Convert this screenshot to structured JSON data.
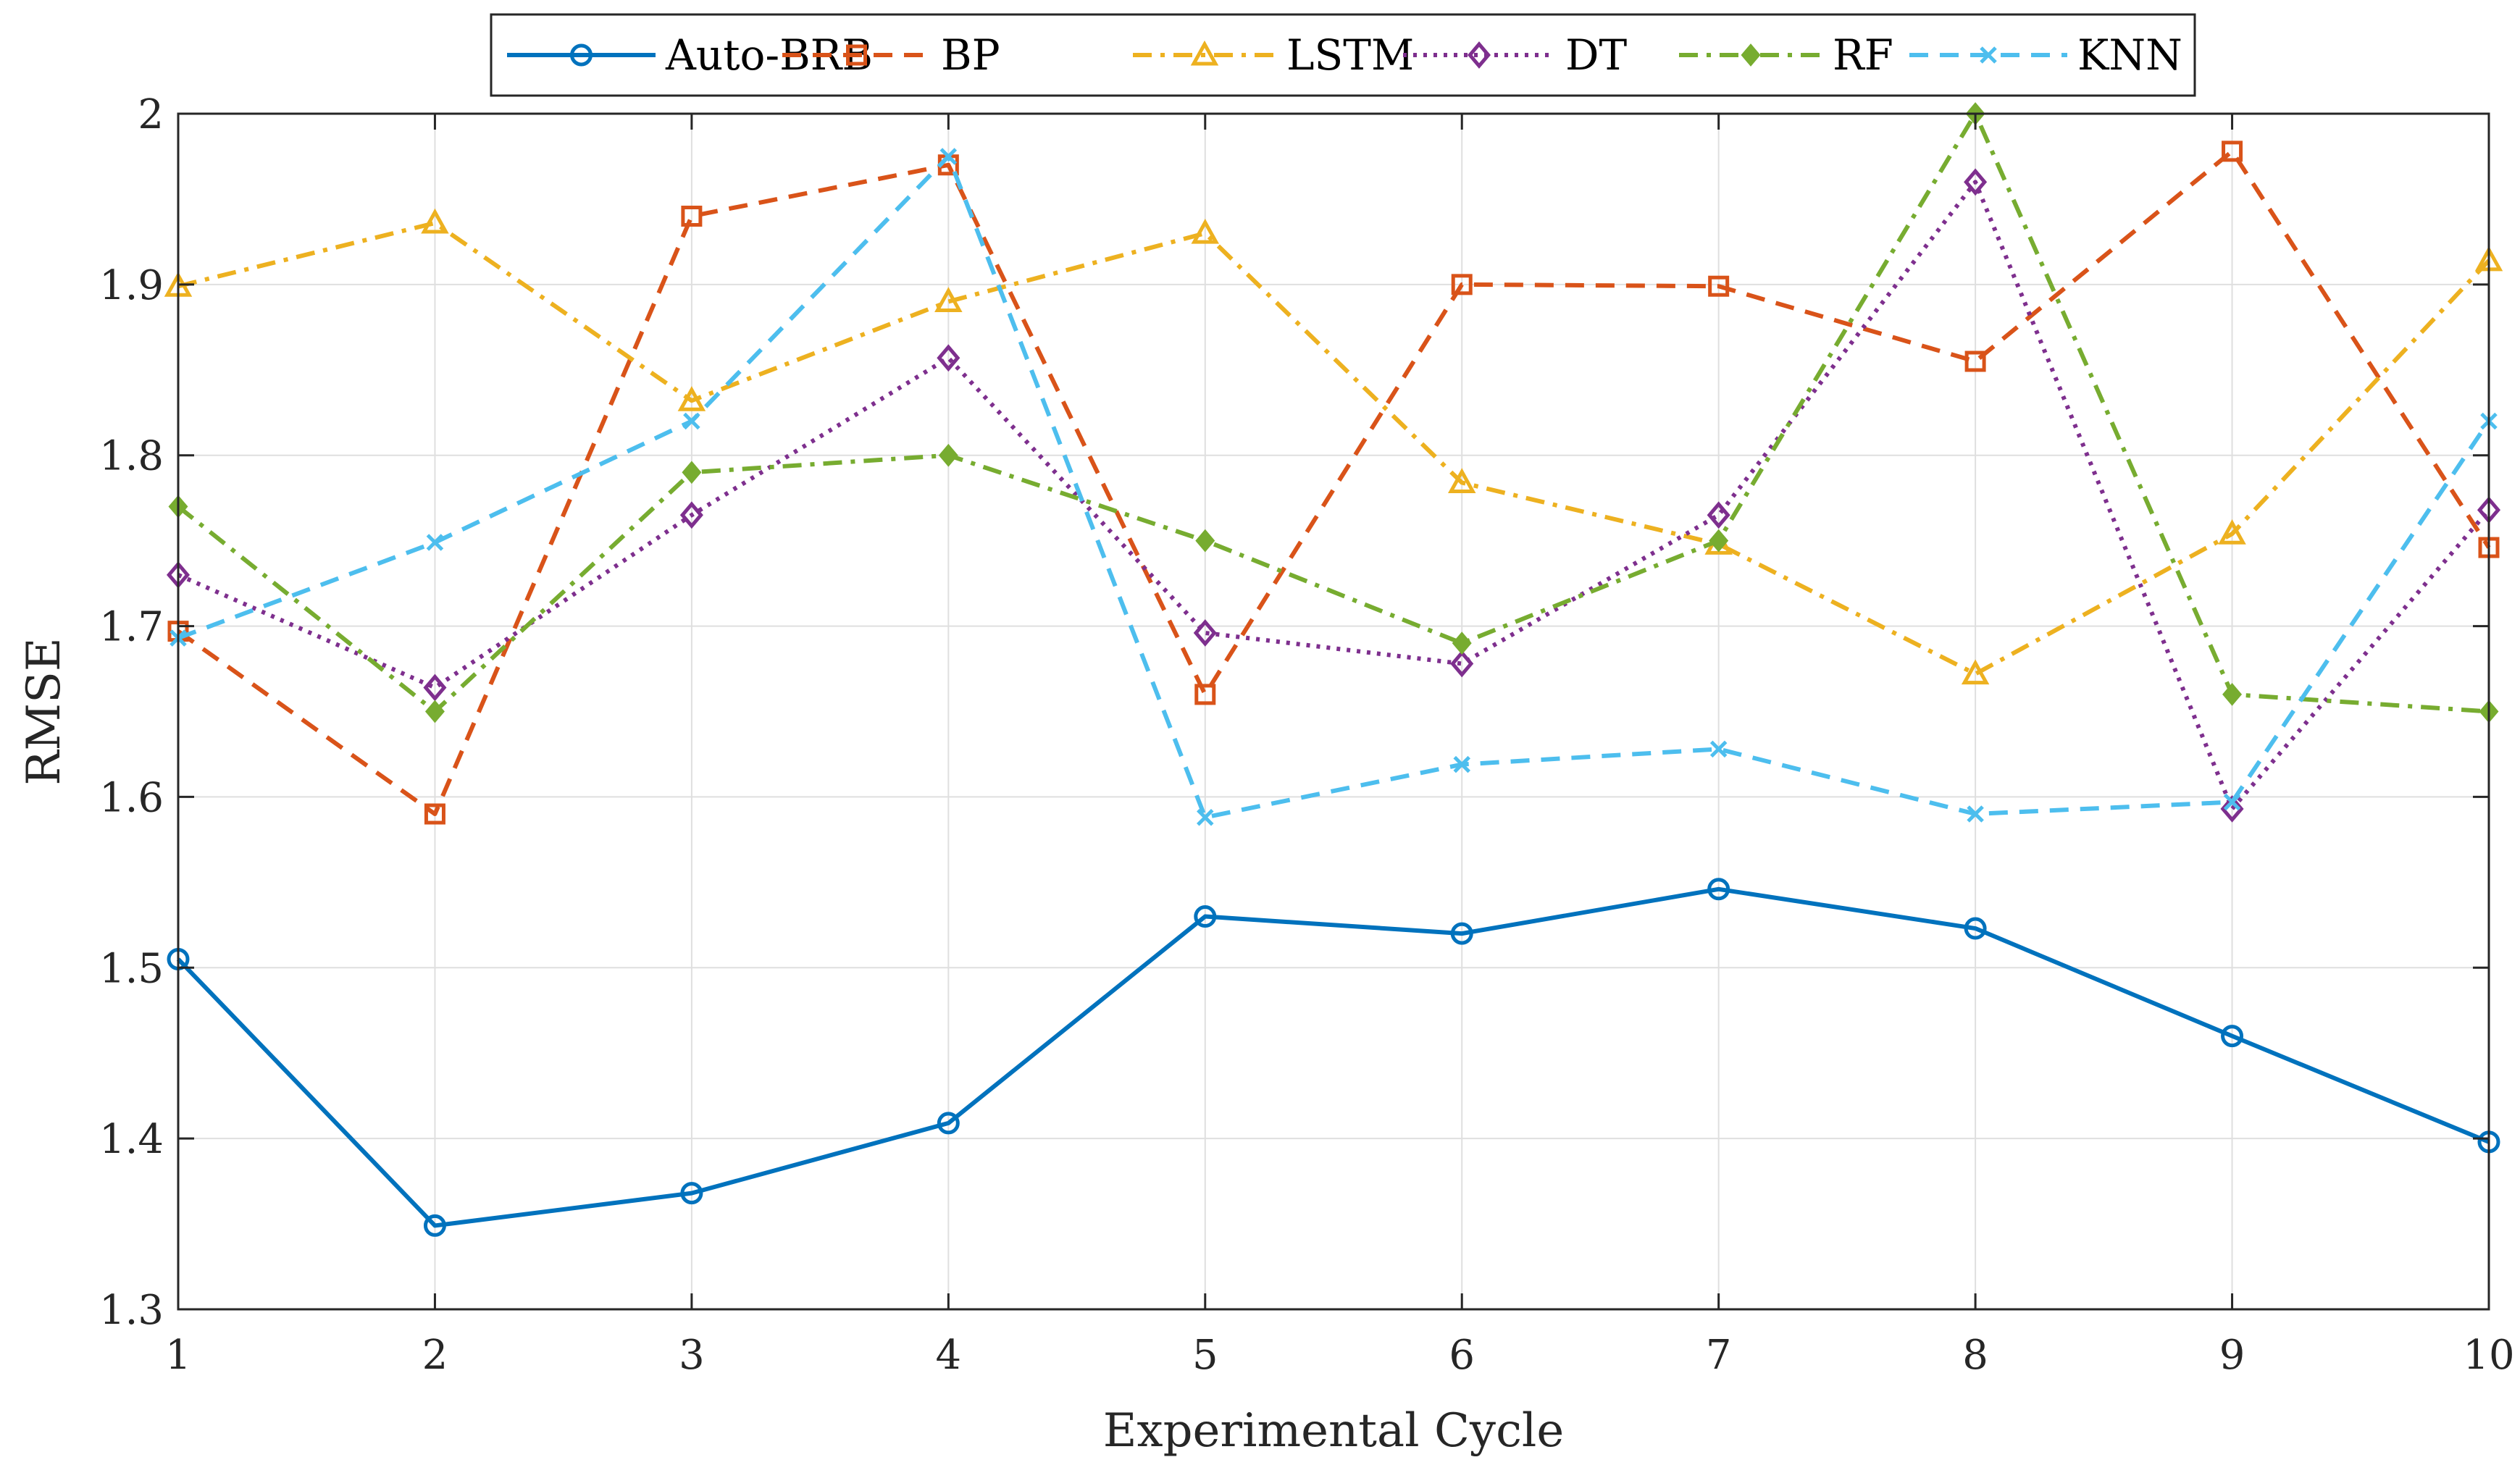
{
  "chart_data": {
    "type": "line",
    "title": "",
    "xlabel": "Experimental Cycle",
    "ylabel": "RMSE",
    "x": [
      1,
      2,
      3,
      4,
      5,
      6,
      7,
      8,
      9,
      10
    ],
    "xticks": [
      "1",
      "2",
      "3",
      "4",
      "5",
      "6",
      "7",
      "8",
      "9",
      "10"
    ],
    "xlim": [
      1,
      10
    ],
    "ylim": [
      1.3,
      2.0
    ],
    "yticks": [
      "1.3",
      "1.4",
      "1.5",
      "1.6",
      "1.7",
      "1.8",
      "1.9",
      "2"
    ],
    "ytick_values": [
      1.3,
      1.4,
      1.5,
      1.6,
      1.7,
      1.8,
      1.9,
      2.0
    ],
    "grid": true,
    "legend_position": "top, horizontal, outside",
    "series": [
      {
        "name": "Auto-BRB",
        "color": "#0072BD",
        "dash": "solid",
        "marker": "circle",
        "values": [
          1.505,
          1.349,
          1.368,
          1.409,
          1.53,
          1.52,
          1.546,
          1.523,
          1.46,
          1.398
        ]
      },
      {
        "name": "BP",
        "color": "#D95319",
        "dash": "dash",
        "marker": "square",
        "values": [
          1.697,
          1.59,
          1.94,
          1.97,
          1.66,
          1.9,
          1.899,
          1.855,
          1.978,
          1.746
        ]
      },
      {
        "name": "LSTM",
        "color": "#EDB120",
        "dash": "dashdot",
        "marker": "triangle",
        "values": [
          1.899,
          1.936,
          1.832,
          1.89,
          1.93,
          1.784,
          1.748,
          1.672,
          1.754,
          1.914
        ]
      },
      {
        "name": "DT",
        "color": "#7E2F8E",
        "dash": "dot",
        "marker": "diamond",
        "values": [
          1.73,
          1.664,
          1.765,
          1.857,
          1.696,
          1.678,
          1.765,
          1.96,
          1.593,
          1.768
        ]
      },
      {
        "name": "RF",
        "color": "#77AC30",
        "dash": "dashdot",
        "marker": "diamond-filled",
        "values": [
          1.77,
          1.65,
          1.79,
          1.8,
          1.75,
          1.69,
          1.75,
          2.0,
          1.66,
          1.65
        ]
      },
      {
        "name": "KNN",
        "color": "#4DBEEE",
        "dash": "dash",
        "marker": "x",
        "values": [
          1.693,
          1.749,
          1.82,
          1.975,
          1.588,
          1.619,
          1.628,
          1.59,
          1.597,
          1.82
        ]
      }
    ]
  }
}
